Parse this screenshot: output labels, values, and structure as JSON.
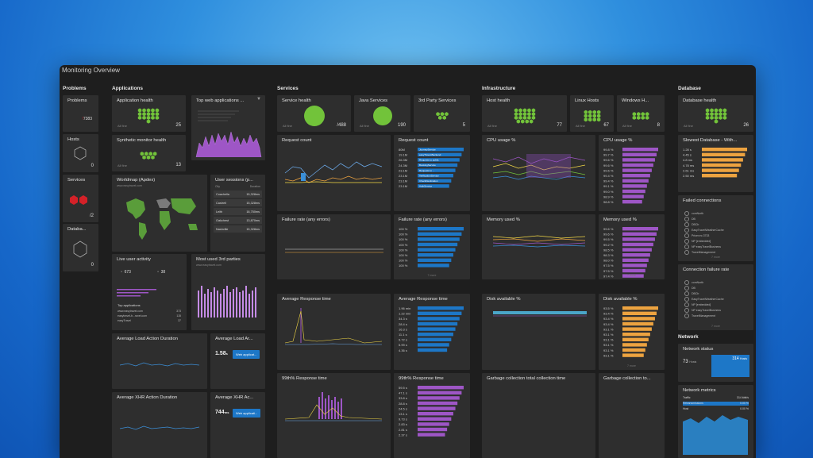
{
  "window_title": "Monitoring Overview",
  "sections": {
    "problems": "Problems",
    "applications": "Applications",
    "services": "Services",
    "infrastructure": "Infrastructure",
    "database": "Database",
    "network": "Network"
  },
  "problems": {
    "problems_tile": {
      "title": "Problems",
      "value": "7383"
    },
    "hosts_tile": {
      "title": "Hosts",
      "value": "0"
    },
    "services_tile": {
      "title": "Services",
      "value": "/2"
    },
    "database_tile": {
      "title": "Databa...",
      "value": "0"
    }
  },
  "applications": {
    "app_health": {
      "title": "Application health",
      "value": "25",
      "sub": "All fine"
    },
    "top_web": {
      "title": "Top web applications ..."
    },
    "synthetic": {
      "title": "Synthetic monitor health",
      "value": "13",
      "sub": "All fine"
    },
    "worldmap": {
      "title": "Worldmap (Apdex)",
      "sub": "www.easytravel.com"
    },
    "user_sessions": {
      "title": "User sessions (p...",
      "col_city": "City",
      "col_duration": "Duration",
      "rows": [
        {
          "city": "Coachella",
          "val": "15,328ms"
        },
        {
          "city": "Castrell",
          "val": "15,328ms"
        },
        {
          "city": "Leith",
          "val": "18,750ms"
        },
        {
          "city": "Oakchest",
          "val": "13,870ms"
        },
        {
          "city": "Nashville",
          "val": "15,328ms"
        }
      ]
    },
    "live_activity": {
      "title": "Live user activity",
      "count1": "673",
      "count2": "38",
      "top_apps_label": "Top applications",
      "apps": [
        {
          "name": "www.easytravel.com",
          "val": "373"
        },
        {
          "name": "easytravel-b...ravel.com",
          "val": "115"
        },
        {
          "name": "easyTravel",
          "val": "37"
        }
      ]
    },
    "third_parties": {
      "title": "Most used 3rd parties",
      "sub": "www.easytravel.com"
    },
    "load_action": {
      "title": "Average Load Action Duration"
    },
    "load_ar": {
      "title": "Average Load Ar...",
      "value": "1.58",
      "unit": "s",
      "button": "Web applicat..."
    },
    "xhr_action": {
      "title": "Average XHR Action Duration"
    },
    "xhr_ar": {
      "title": "Average XHR Ac...",
      "value": "744",
      "unit": "ms",
      "button": "Web applicati..."
    }
  },
  "services": {
    "service_health": {
      "title": "Service health",
      "value": "/488",
      "sub": "All fine"
    },
    "java_services": {
      "title": "Java Services",
      "value": "190",
      "sub": "All fine"
    },
    "third_party": {
      "title": "3rd Party Services",
      "value": "5"
    },
    "request_count": {
      "title": "Request count"
    },
    "request_count_list": {
      "title": "Request count",
      "rows": [
        {
          "val": "80M",
          "label": "JourneyService"
        },
        {
          "val": "19.1M",
          "label": "easyTravel-Backend"
        },
        {
          "val": "26.3M",
          "label": "Requests to public"
        },
        {
          "val": "24.3M",
          "label": "BookingService"
        },
        {
          "val": "23.1M",
          "label": "Requests to ..."
        },
        {
          "val": "23.1M",
          "label": "VerificationService"
        },
        {
          "val": "23.1M",
          "label": "CheckDestination"
        },
        {
          "val": "23.1M",
          "label": "AuthService"
        }
      ]
    },
    "failure_rate": {
      "title": "Failure rate (any errors)"
    },
    "failure_rate_list": {
      "title": "Failure rate (any errors)",
      "rows": [
        {
          "val": "100 %"
        },
        {
          "val": "100 %"
        },
        {
          "val": "100 %"
        },
        {
          "val": "100 %"
        },
        {
          "val": "100 %"
        },
        {
          "val": "100 %"
        },
        {
          "val": "100 %"
        },
        {
          "val": "100 %"
        }
      ],
      "more": "7 more"
    },
    "avg_response": {
      "title": "Average Response time"
    },
    "avg_response_list": {
      "title": "Average Response time",
      "rows": [
        {
          "val": "1.96 min"
        },
        {
          "val": "1.22 min"
        },
        {
          "val": "34.3 s"
        },
        {
          "val": "28.4 s"
        },
        {
          "val": "16.3 s"
        },
        {
          "val": "11.1 s"
        },
        {
          "val": "9.72 s"
        },
        {
          "val": "5.99 s"
        },
        {
          "val": "4.36 s"
        }
      ]
    },
    "p99_response": {
      "title": "99th% Response time"
    },
    "p99_response_list": {
      "title": "99th% Response time",
      "rows": [
        {
          "val": "59.5 s"
        },
        {
          "val": "47.1 s"
        },
        {
          "val": "33.8 s"
        },
        {
          "val": "28.8 s"
        },
        {
          "val": "24.5 s"
        },
        {
          "val": "13.1 s"
        },
        {
          "val": "9.73 s"
        },
        {
          "val": "2.83 s"
        },
        {
          "val": "2.81 s"
        },
        {
          "val": "2.37 s"
        }
      ]
    }
  },
  "infrastructure": {
    "host_health": {
      "title": "Host health",
      "value": "77",
      "sub": "All fine"
    },
    "linux_hosts": {
      "title": "Linux Hosts",
      "value": "67",
      "sub": "All fine"
    },
    "windows_hosts": {
      "title": "Windows H...",
      "value": "8",
      "sub": "All fine"
    },
    "cpu_usage": {
      "title": "CPU usage %"
    },
    "cpu_usage_list": {
      "title": "CPU usage %",
      "rows": [
        {
          "val": "99.8 %"
        },
        {
          "val": "99.7 %"
        },
        {
          "val": "99.6 %"
        },
        {
          "val": "99.6 %"
        },
        {
          "val": "99.6 %"
        },
        {
          "val": "99.4 %"
        },
        {
          "val": "99.4 %"
        },
        {
          "val": "99.1 %"
        },
        {
          "val": "99.0 %"
        },
        {
          "val": "98.9 %"
        },
        {
          "val": "98.8 %"
        }
      ]
    },
    "memory_used": {
      "title": "Memory used %"
    },
    "memory_used_list": {
      "title": "Memory used %",
      "rows": [
        {
          "val": "99.6 %"
        },
        {
          "val": "99.6 %"
        },
        {
          "val": "99.5 %"
        },
        {
          "val": "99.2 %"
        },
        {
          "val": "98.5 %"
        },
        {
          "val": "98.3 %"
        },
        {
          "val": "98.0 %"
        },
        {
          "val": "97.5 %"
        },
        {
          "val": "97.5 %"
        },
        {
          "val": "97.4 %"
        }
      ],
      "more": "7 more"
    },
    "disk_available": {
      "title": "Disk available %"
    },
    "disk_available_list": {
      "title": "Disk available %",
      "rows": [
        {
          "val": "93.5 %"
        },
        {
          "val": "93.4 %"
        },
        {
          "val": "93.4 %"
        },
        {
          "val": "93.4 %"
        },
        {
          "val": "93.1 %"
        },
        {
          "val": "93.1 %"
        },
        {
          "val": "93.1 %"
        },
        {
          "val": "93.1 %"
        },
        {
          "val": "93.1 %"
        },
        {
          "val": "93.1 %"
        }
      ],
      "more": "7 more"
    },
    "gc_total": {
      "title": "Garbage collection total collection time"
    },
    "gc_to": {
      "title": "Garbage collection to..."
    }
  },
  "database": {
    "db_health": {
      "title": "Database health",
      "value": "26",
      "sub": "All fine"
    },
    "slowest": {
      "title": "Slowest Database - With...",
      "rows": [
        {
          "val": "1.28 s"
        },
        {
          "val": "4.45 s"
        },
        {
          "val": "4.8 ms"
        },
        {
          "val": "4.78 ms"
        },
        {
          "val": "2.61 ms"
        },
        {
          "val": "2.50 ms"
        }
      ]
    },
    "failed_conn": {
      "title": "Failed connections",
      "rows": [
        "comNorth",
        "DB",
        "DBCb",
        "EasyTravelWeatherCache",
        "Pricer.ec.3733",
        "NP [embedded]",
        "NP easyTravelBusiness",
        "TravelManagement"
      ],
      "more": "7 more"
    },
    "conn_failure": {
      "title": "Connection failure rate",
      "rows": [
        "comNorth",
        "DB",
        "DBCb",
        "EasyTravelWeatherCache",
        "NP [embedded]",
        "NP easyTravelBusiness",
        "TravelManagement"
      ],
      "more": "7 more"
    }
  },
  "network": {
    "status": {
      "title": "Network status",
      "value1": "73",
      "unit1": "Hosts",
      "value2": "314",
      "unit2": "Hosts"
    },
    "metrics": {
      "title": "Network metrics",
      "rows": [
        {
          "label": "Traffic",
          "val": "314 kbit/s"
        },
        {
          "label": "Retransmissions",
          "val": "0.00 %"
        },
        {
          "label": "Host",
          "val": "0.00 %"
        }
      ]
    }
  },
  "colors": {
    "health_green": "#72c33a",
    "accent_blue": "#1d77c7",
    "tile_bg": "#2e2e2e",
    "window_bg": "#1e1e1e",
    "problem_red": "#d42128"
  }
}
